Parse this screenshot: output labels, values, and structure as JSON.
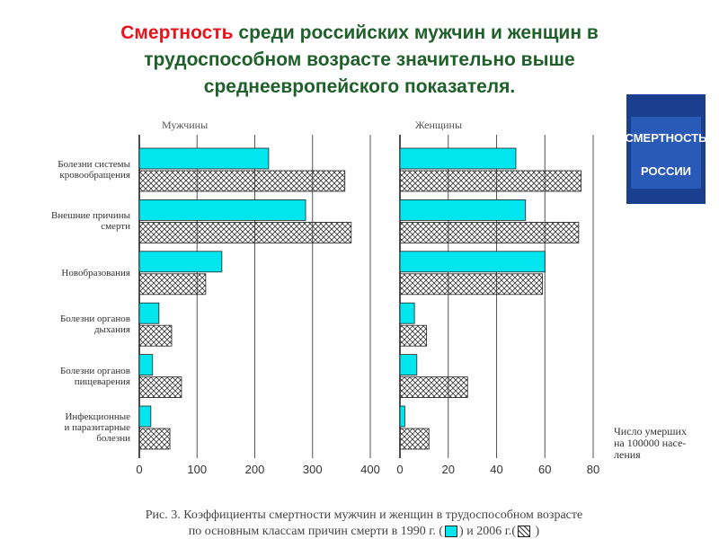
{
  "slide": {
    "title_highlight": "Смертность",
    "title_lines": [
      "среди российских мужчин и женщин в",
      "трудоспособном возрасте значительно выше",
      "среднеевропейского показателя."
    ],
    "cover_title": "СМЕРТНОСТЬ",
    "cover_subtitle": "РОССИИ",
    "caption_line1": "Рис. 3. Коэффициенты смертности мужчин и женщин в трудоспособном возрасте",
    "caption_prefix": "по основным классам причин смерти в",
    "caption_open": "(",
    "caption_and": ") и",
    "caption_close": ")"
  },
  "chart_data": [
    {
      "type": "hbar",
      "title": "Мужчины",
      "categories": [
        "Болезни системы\nкровообращения",
        "Внешние причины\nсмерти",
        "Новобразования",
        "Болезни органов\nдыхания",
        "Болезни органов\nпищеварения",
        "Инфекционные\nи паразитарные\nболезни"
      ],
      "series": [
        {
          "name": "1990 г.",
          "color": "#00e5ee",
          "values": [
            224,
            288,
            143,
            34,
            23,
            20
          ]
        },
        {
          "name": "2006 г.",
          "color": "#ffffff",
          "hatch": true,
          "values": [
            356,
            367,
            115,
            56,
            73,
            53
          ]
        }
      ],
      "xlim": [
        0,
        400
      ],
      "xticks": [
        0,
        100,
        200,
        300,
        400
      ],
      "grid": true
    },
    {
      "type": "hbar",
      "title": "Женщины",
      "series": [
        {
          "color": "#00e5ee",
          "values": [
            48,
            52,
            60,
            6,
            7,
            2
          ]
        },
        {
          "color": "#ffffff",
          "hatch": true,
          "values": [
            75,
            74,
            59,
            11,
            28,
            12
          ]
        }
      ],
      "xlim": [
        0,
        80
      ],
      "xticks": [
        0,
        20,
        40,
        60,
        80
      ],
      "grid": true,
      "xlabel": [
        "Число умерших",
        "на 100000 насе-",
        "ления"
      ]
    }
  ]
}
